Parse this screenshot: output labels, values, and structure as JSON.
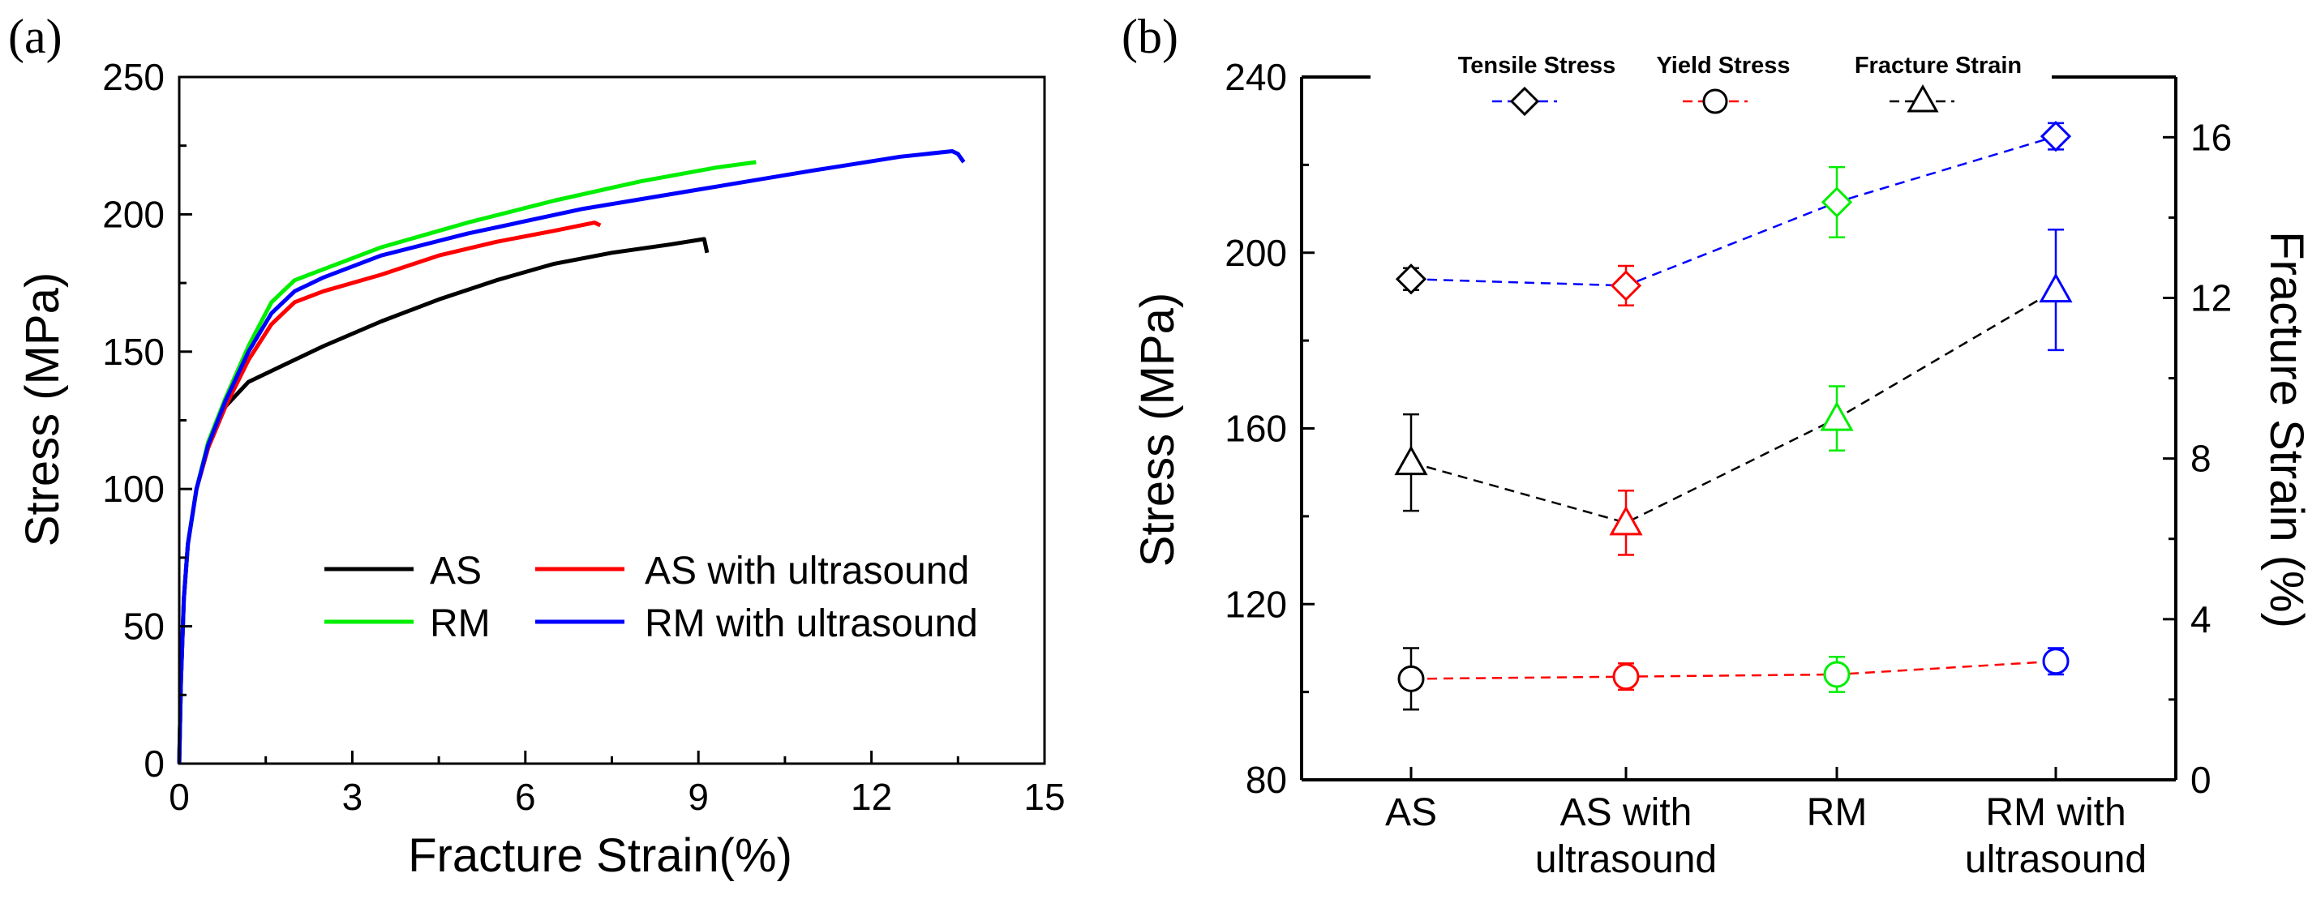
{
  "chart_data": [
    {
      "panel_label": "(a)",
      "type": "line",
      "title": "",
      "xlabel": "Fracture Strain(%)",
      "ylabel": "Stress (MPa)",
      "xlim": [
        0,
        15
      ],
      "ylim": [
        0,
        250
      ],
      "xticks": [
        0,
        3,
        6,
        9,
        12,
        15
      ],
      "yticks": [
        0,
        50,
        100,
        150,
        200,
        250
      ],
      "legend_position": "lower-right",
      "series": [
        {
          "name": "AS",
          "color": "#000000",
          "points": [
            [
              0,
              0
            ],
            [
              0.03,
              30
            ],
            [
              0.08,
              60
            ],
            [
              0.15,
              80
            ],
            [
              0.3,
              100
            ],
            [
              0.5,
              115
            ],
            [
              0.8,
              130
            ],
            [
              1.2,
              139
            ],
            [
              1.7,
              144
            ],
            [
              2.5,
              152
            ],
            [
              3.5,
              161
            ],
            [
              4.5,
              169
            ],
            [
              5.5,
              176
            ],
            [
              6.5,
              182
            ],
            [
              7.5,
              186
            ],
            [
              8.5,
              189
            ],
            [
              9.1,
              191
            ],
            [
              9.15,
              186
            ]
          ]
        },
        {
          "name": "AS with ultrasound",
          "color": "#ff0000",
          "points": [
            [
              0,
              0
            ],
            [
              0.03,
              30
            ],
            [
              0.08,
              60
            ],
            [
              0.15,
              80
            ],
            [
              0.3,
              100
            ],
            [
              0.5,
              115
            ],
            [
              0.8,
              130
            ],
            [
              1.2,
              147
            ],
            [
              1.6,
              160
            ],
            [
              2.0,
              168
            ],
            [
              2.5,
              172
            ],
            [
              3.5,
              178
            ],
            [
              4.5,
              185
            ],
            [
              5.5,
              190
            ],
            [
              6.5,
              194
            ],
            [
              7.2,
              197
            ],
            [
              7.3,
              196
            ]
          ]
        },
        {
          "name": "RM",
          "color": "#00ee00",
          "points": [
            [
              0,
              0
            ],
            [
              0.03,
              30
            ],
            [
              0.08,
              60
            ],
            [
              0.15,
              80
            ],
            [
              0.3,
              100
            ],
            [
              0.5,
              117
            ],
            [
              0.8,
              133
            ],
            [
              1.2,
              152
            ],
            [
              1.6,
              168
            ],
            [
              2.0,
              176
            ],
            [
              2.5,
              180
            ],
            [
              3.5,
              188
            ],
            [
              5,
              197
            ],
            [
              6.5,
              205
            ],
            [
              8,
              212
            ],
            [
              9.3,
              217
            ],
            [
              10,
              219
            ]
          ]
        },
        {
          "name": "RM with ultrasound",
          "color": "#0000ff",
          "points": [
            [
              0,
              0
            ],
            [
              0.03,
              30
            ],
            [
              0.08,
              60
            ],
            [
              0.15,
              80
            ],
            [
              0.3,
              100
            ],
            [
              0.5,
              116
            ],
            [
              0.8,
              132
            ],
            [
              1.2,
              150
            ],
            [
              1.6,
              164
            ],
            [
              2.0,
              172
            ],
            [
              2.5,
              177
            ],
            [
              3.5,
              185
            ],
            [
              5,
              193
            ],
            [
              7,
              202
            ],
            [
              9,
              209
            ],
            [
              11,
              216
            ],
            [
              12.5,
              221
            ],
            [
              13.4,
              223
            ],
            [
              13.5,
              222
            ],
            [
              13.6,
              219
            ]
          ]
        }
      ]
    },
    {
      "panel_label": "(b)",
      "type": "scatter",
      "title": "",
      "categories": [
        "AS",
        "AS with ultrasound",
        "RM",
        "RM with ultrasound"
      ],
      "category_lines": [
        [
          "AS"
        ],
        [
          "AS with",
          "ultrasound"
        ],
        [
          "RM"
        ],
        [
          "RM with",
          "ultrasound"
        ]
      ],
      "ylabel": "Stress (MPa)",
      "y2label": "Fracture Strain (%)",
      "ylim": [
        80,
        240
      ],
      "yticks": [
        80,
        120,
        160,
        200,
        240
      ],
      "y2lim": [
        0,
        17.5
      ],
      "y2ticks": [
        0,
        4,
        8,
        12,
        16
      ],
      "legend_position": "top",
      "point_colors": [
        "#000000",
        "#ff0000",
        "#00ee00",
        "#0000ff"
      ],
      "series": [
        {
          "name": "Tensile Stress",
          "marker": "diamond",
          "axis": "left",
          "line_color": "#0000ff",
          "values": [
            194,
            192.5,
            211.5,
            226.5
          ],
          "errors": [
            2.5,
            4.5,
            8,
            3
          ]
        },
        {
          "name": "Yield Stress",
          "marker": "circle",
          "axis": "left",
          "line_color": "#ff0000",
          "values": [
            103,
            103.5,
            104,
            107
          ],
          "errors": [
            7,
            3,
            4,
            3
          ]
        },
        {
          "name": "Fracture Strain",
          "marker": "triangle",
          "axis": "right",
          "line_color": "#000000",
          "values": [
            7.9,
            6.4,
            9.0,
            12.2
          ],
          "errors": [
            1.2,
            0.8,
            0.8,
            1.5
          ]
        }
      ]
    }
  ],
  "legend_a": {
    "as": "AS",
    "as_us": "AS with ultrasound",
    "rm": "RM",
    "rm_us": "RM with ultrasound"
  },
  "legend_b": {
    "tensile": "Tensile Stress",
    "yield": "Yield Stress",
    "fracture": "Fracture Strain"
  }
}
